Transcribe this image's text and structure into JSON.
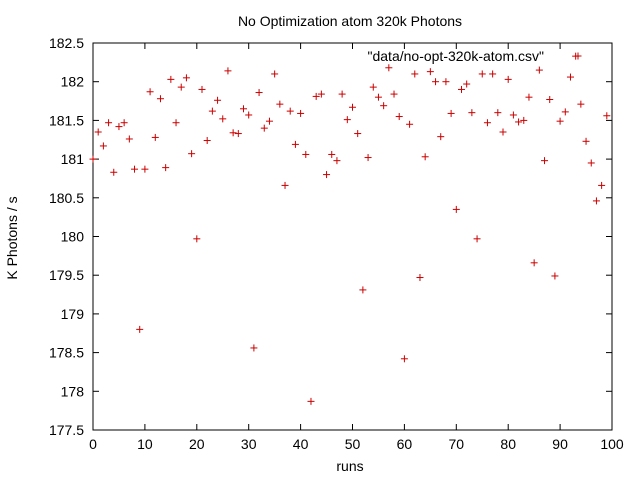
{
  "chart_data": {
    "type": "scatter",
    "title": "No Optimization atom 320k Photons",
    "xlabel": "runs",
    "ylabel": "K Photons / s",
    "xlim": [
      0,
      100
    ],
    "ylim": [
      177.5,
      182.5
    ],
    "xticks": [
      "0",
      "10",
      "20",
      "30",
      "40",
      "50",
      "60",
      "70",
      "80",
      "90",
      "100"
    ],
    "yticks": [
      "177.5",
      "178",
      "178.5",
      "179",
      "179.5",
      "180",
      "180.5",
      "181",
      "181.5",
      "182",
      "182.5"
    ],
    "grid": false,
    "legend": "top-right",
    "marker": "plus",
    "series": [
      {
        "name": "\"data/no-opt-320k-atom.csv\"",
        "color": "#cc0000",
        "x": [
          0,
          1,
          2,
          3,
          4,
          5,
          6,
          7,
          8,
          9,
          10,
          11,
          12,
          13,
          14,
          15,
          16,
          17,
          18,
          19,
          20,
          21,
          22,
          23,
          24,
          25,
          26,
          27,
          28,
          29,
          30,
          31,
          32,
          33,
          34,
          35,
          36,
          37,
          38,
          39,
          40,
          41,
          42,
          43,
          44,
          45,
          46,
          47,
          48,
          49,
          50,
          51,
          52,
          53,
          54,
          55,
          56,
          57,
          58,
          59,
          60,
          61,
          62,
          63,
          64,
          65,
          66,
          67,
          68,
          69,
          70,
          71,
          72,
          73,
          74,
          75,
          76,
          77,
          78,
          79,
          80,
          81,
          82,
          83,
          84,
          85,
          86,
          87,
          88,
          89,
          90,
          91,
          92,
          93,
          94,
          95,
          96,
          97,
          98,
          99
        ],
        "y": [
          181.0,
          181.35,
          181.17,
          181.47,
          180.83,
          181.42,
          181.47,
          181.26,
          180.87,
          178.8,
          180.87,
          181.87,
          181.28,
          181.78,
          180.89,
          182.03,
          181.47,
          181.93,
          182.05,
          181.07,
          179.97,
          181.9,
          181.24,
          181.62,
          181.76,
          181.52,
          182.14,
          181.34,
          181.33,
          181.65,
          181.57,
          178.56,
          181.86,
          181.4,
          181.49,
          182.1,
          181.71,
          180.66,
          181.62,
          181.19,
          181.59,
          181.06,
          177.87,
          181.81,
          181.84,
          180.8,
          181.06,
          180.98,
          181.84,
          181.51,
          181.67,
          181.33,
          179.31,
          181.02,
          181.93,
          181.8,
          181.69,
          182.18,
          181.84,
          181.55,
          178.42,
          181.45,
          182.1,
          179.47,
          181.03,
          182.13,
          182.0,
          181.29,
          182.0,
          181.59,
          180.35,
          181.9,
          181.97,
          181.6,
          179.97,
          182.1,
          181.47,
          182.1,
          181.6,
          181.35,
          182.03,
          181.57,
          181.48,
          181.5,
          181.8,
          179.66,
          182.15,
          180.98,
          181.77,
          179.49,
          181.49,
          181.61,
          182.06,
          182.33,
          181.71,
          181.23,
          180.95,
          180.46,
          180.66,
          181.56
        ]
      }
    ]
  }
}
